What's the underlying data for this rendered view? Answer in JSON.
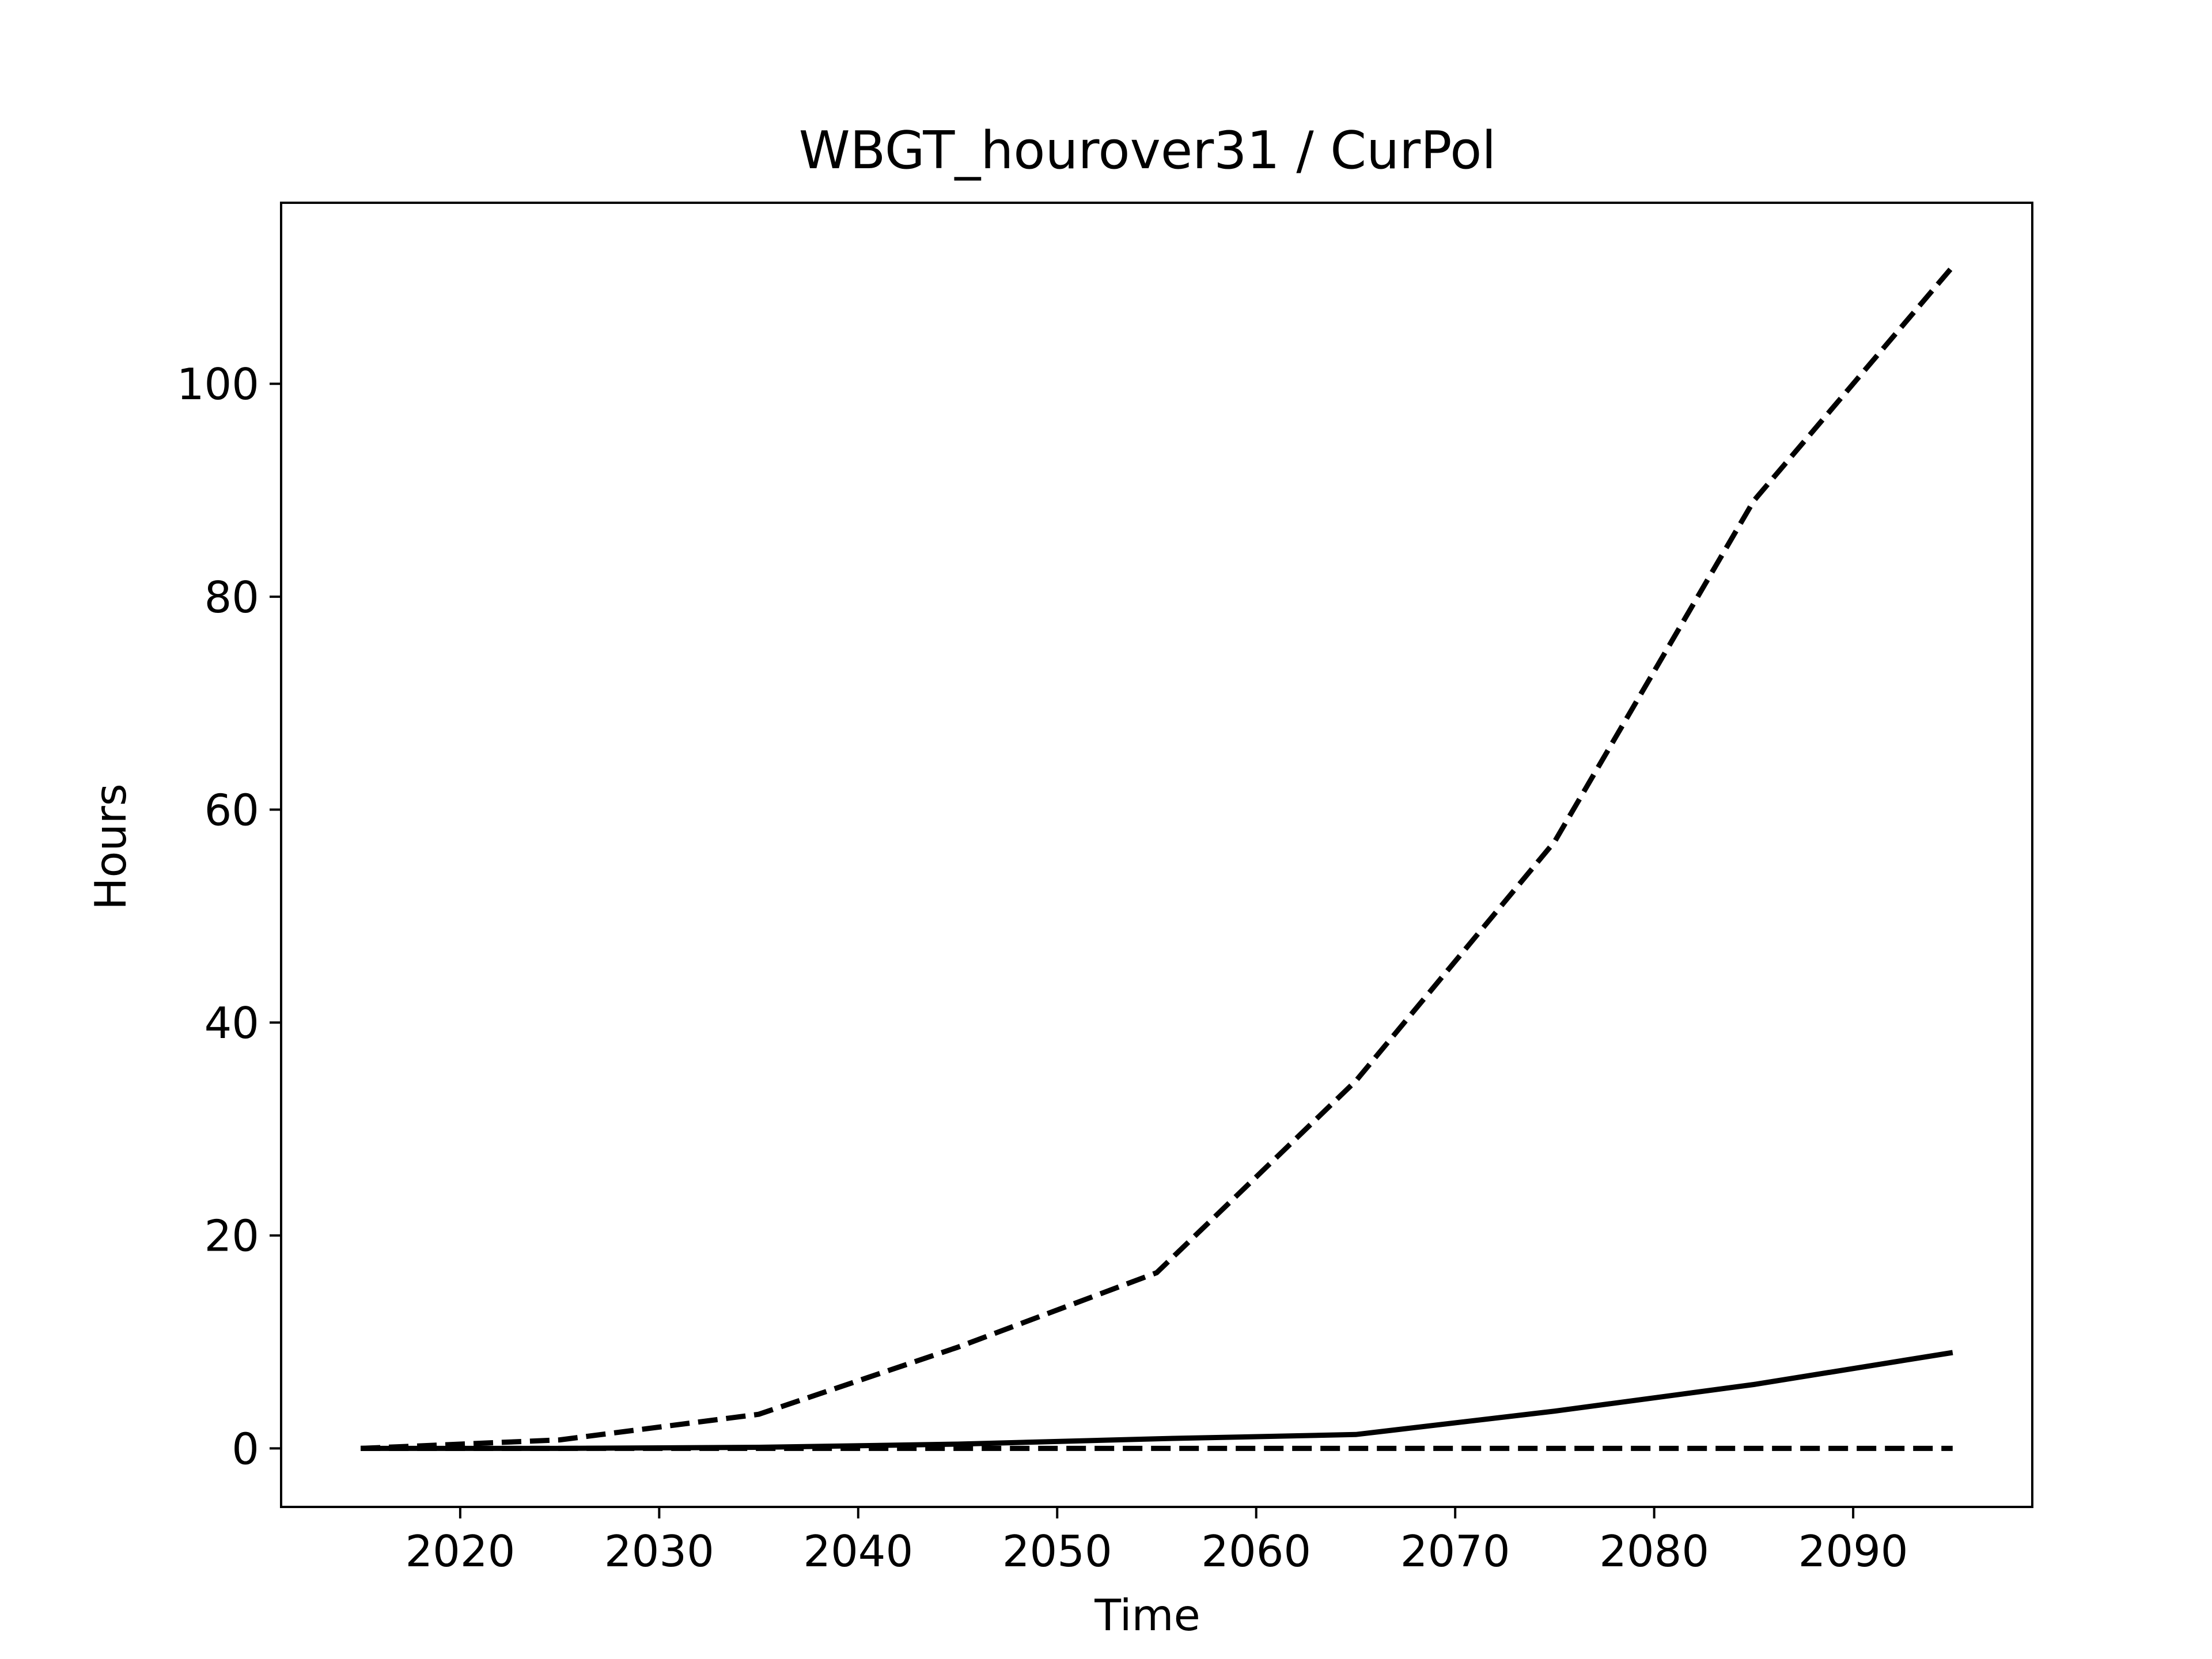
{
  "chart_data": {
    "type": "line",
    "title": "WBGT_hourover31 / CurPol",
    "xlabel": "Time",
    "ylabel": "Hours",
    "xlim": [
      2011,
      2099
    ],
    "ylim": [
      -5.5,
      117
    ],
    "xticks": [
      2020,
      2030,
      2040,
      2050,
      2060,
      2070,
      2080,
      2090
    ],
    "yticks": [
      0,
      20,
      40,
      60,
      80,
      100
    ],
    "grid": false,
    "legend": "none",
    "x": [
      2015,
      2025,
      2035,
      2045,
      2055,
      2065,
      2075,
      2085,
      2095
    ],
    "series": [
      {
        "style": "dashed",
        "color": "#000000",
        "values": [
          0,
          0.8,
          3.2,
          9.5,
          16.5,
          34.5,
          57,
          89,
          111
        ]
      },
      {
        "style": "solid",
        "color": "#000000",
        "values": [
          0,
          0,
          0.1,
          0.4,
          0.9,
          1.3,
          3.5,
          6,
          9
        ]
      },
      {
        "style": "dashed",
        "color": "#000000",
        "values": [
          0,
          0,
          0,
          0,
          0,
          0,
          0,
          0,
          0
        ]
      }
    ]
  }
}
